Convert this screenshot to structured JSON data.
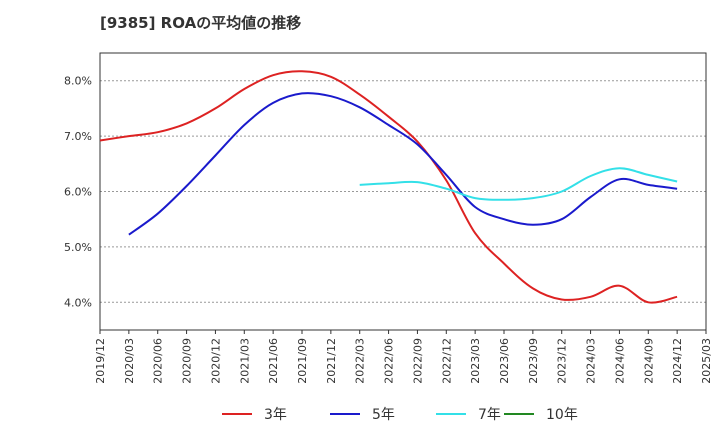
{
  "chart_data": {
    "type": "line",
    "title": "[9385]  ROAの平均値の推移",
    "xlabel": "",
    "ylabel": "",
    "x_ticks": [
      "2019/12",
      "2020/03",
      "2020/06",
      "2020/09",
      "2020/12",
      "2021/03",
      "2021/06",
      "2021/09",
      "2021/12",
      "2022/03",
      "2022/06",
      "2022/09",
      "2022/12",
      "2023/03",
      "2023/06",
      "2023/09",
      "2023/12",
      "2024/03",
      "2024/06",
      "2024/09",
      "2024/12",
      "2025/03"
    ],
    "y_ticks": [
      "4.0%",
      "5.0%",
      "6.0%",
      "7.0%",
      "8.0%"
    ],
    "y_tick_values": [
      4.0,
      5.0,
      6.0,
      7.0,
      8.0
    ],
    "ylim": [
      3.5,
      8.5
    ],
    "xlim_quarters": [
      "2019/12",
      "2025/03"
    ],
    "grid": "y-dashed",
    "legend_position": "bottom",
    "series": [
      {
        "name": "3年",
        "color": "#dd2222",
        "x": [
          "2019/12",
          "2020/03",
          "2020/06",
          "2020/09",
          "2020/12",
          "2021/03",
          "2021/06",
          "2021/09",
          "2021/12",
          "2022/03",
          "2022/06",
          "2022/09",
          "2022/12",
          "2023/03",
          "2023/06",
          "2023/09",
          "2023/12",
          "2024/03",
          "2024/06",
          "2024/09",
          "2024/12"
        ],
        "values": [
          6.92,
          7.0,
          7.07,
          7.23,
          7.5,
          7.85,
          8.1,
          8.17,
          8.07,
          7.75,
          7.35,
          6.9,
          6.2,
          5.25,
          4.7,
          4.25,
          4.05,
          4.1,
          4.3,
          4.0,
          4.1
        ]
      },
      {
        "name": "5年",
        "color": "#1a1acc",
        "x": [
          "2020/03",
          "2020/06",
          "2020/09",
          "2020/12",
          "2021/03",
          "2021/06",
          "2021/09",
          "2021/12",
          "2022/03",
          "2022/06",
          "2022/09",
          "2022/12",
          "2023/03",
          "2023/06",
          "2023/09",
          "2023/12",
          "2024/03",
          "2024/06",
          "2024/09",
          "2024/12"
        ],
        "values": [
          5.22,
          5.6,
          6.1,
          6.65,
          7.2,
          7.6,
          7.77,
          7.72,
          7.52,
          7.2,
          6.85,
          6.3,
          5.72,
          5.5,
          5.4,
          5.5,
          5.9,
          6.22,
          6.12,
          6.05
        ]
      },
      {
        "name": "7年",
        "color": "#33e0e8",
        "x": [
          "2022/03",
          "2022/06",
          "2022/09",
          "2022/12",
          "2023/03",
          "2023/06",
          "2023/09",
          "2023/12",
          "2024/03",
          "2024/06",
          "2024/09",
          "2024/12"
        ],
        "values": [
          6.12,
          6.15,
          6.17,
          6.05,
          5.88,
          5.85,
          5.88,
          6.0,
          6.28,
          6.42,
          6.3,
          6.18
        ]
      },
      {
        "name": "10年",
        "color": "#228822",
        "x": [],
        "values": []
      }
    ]
  }
}
